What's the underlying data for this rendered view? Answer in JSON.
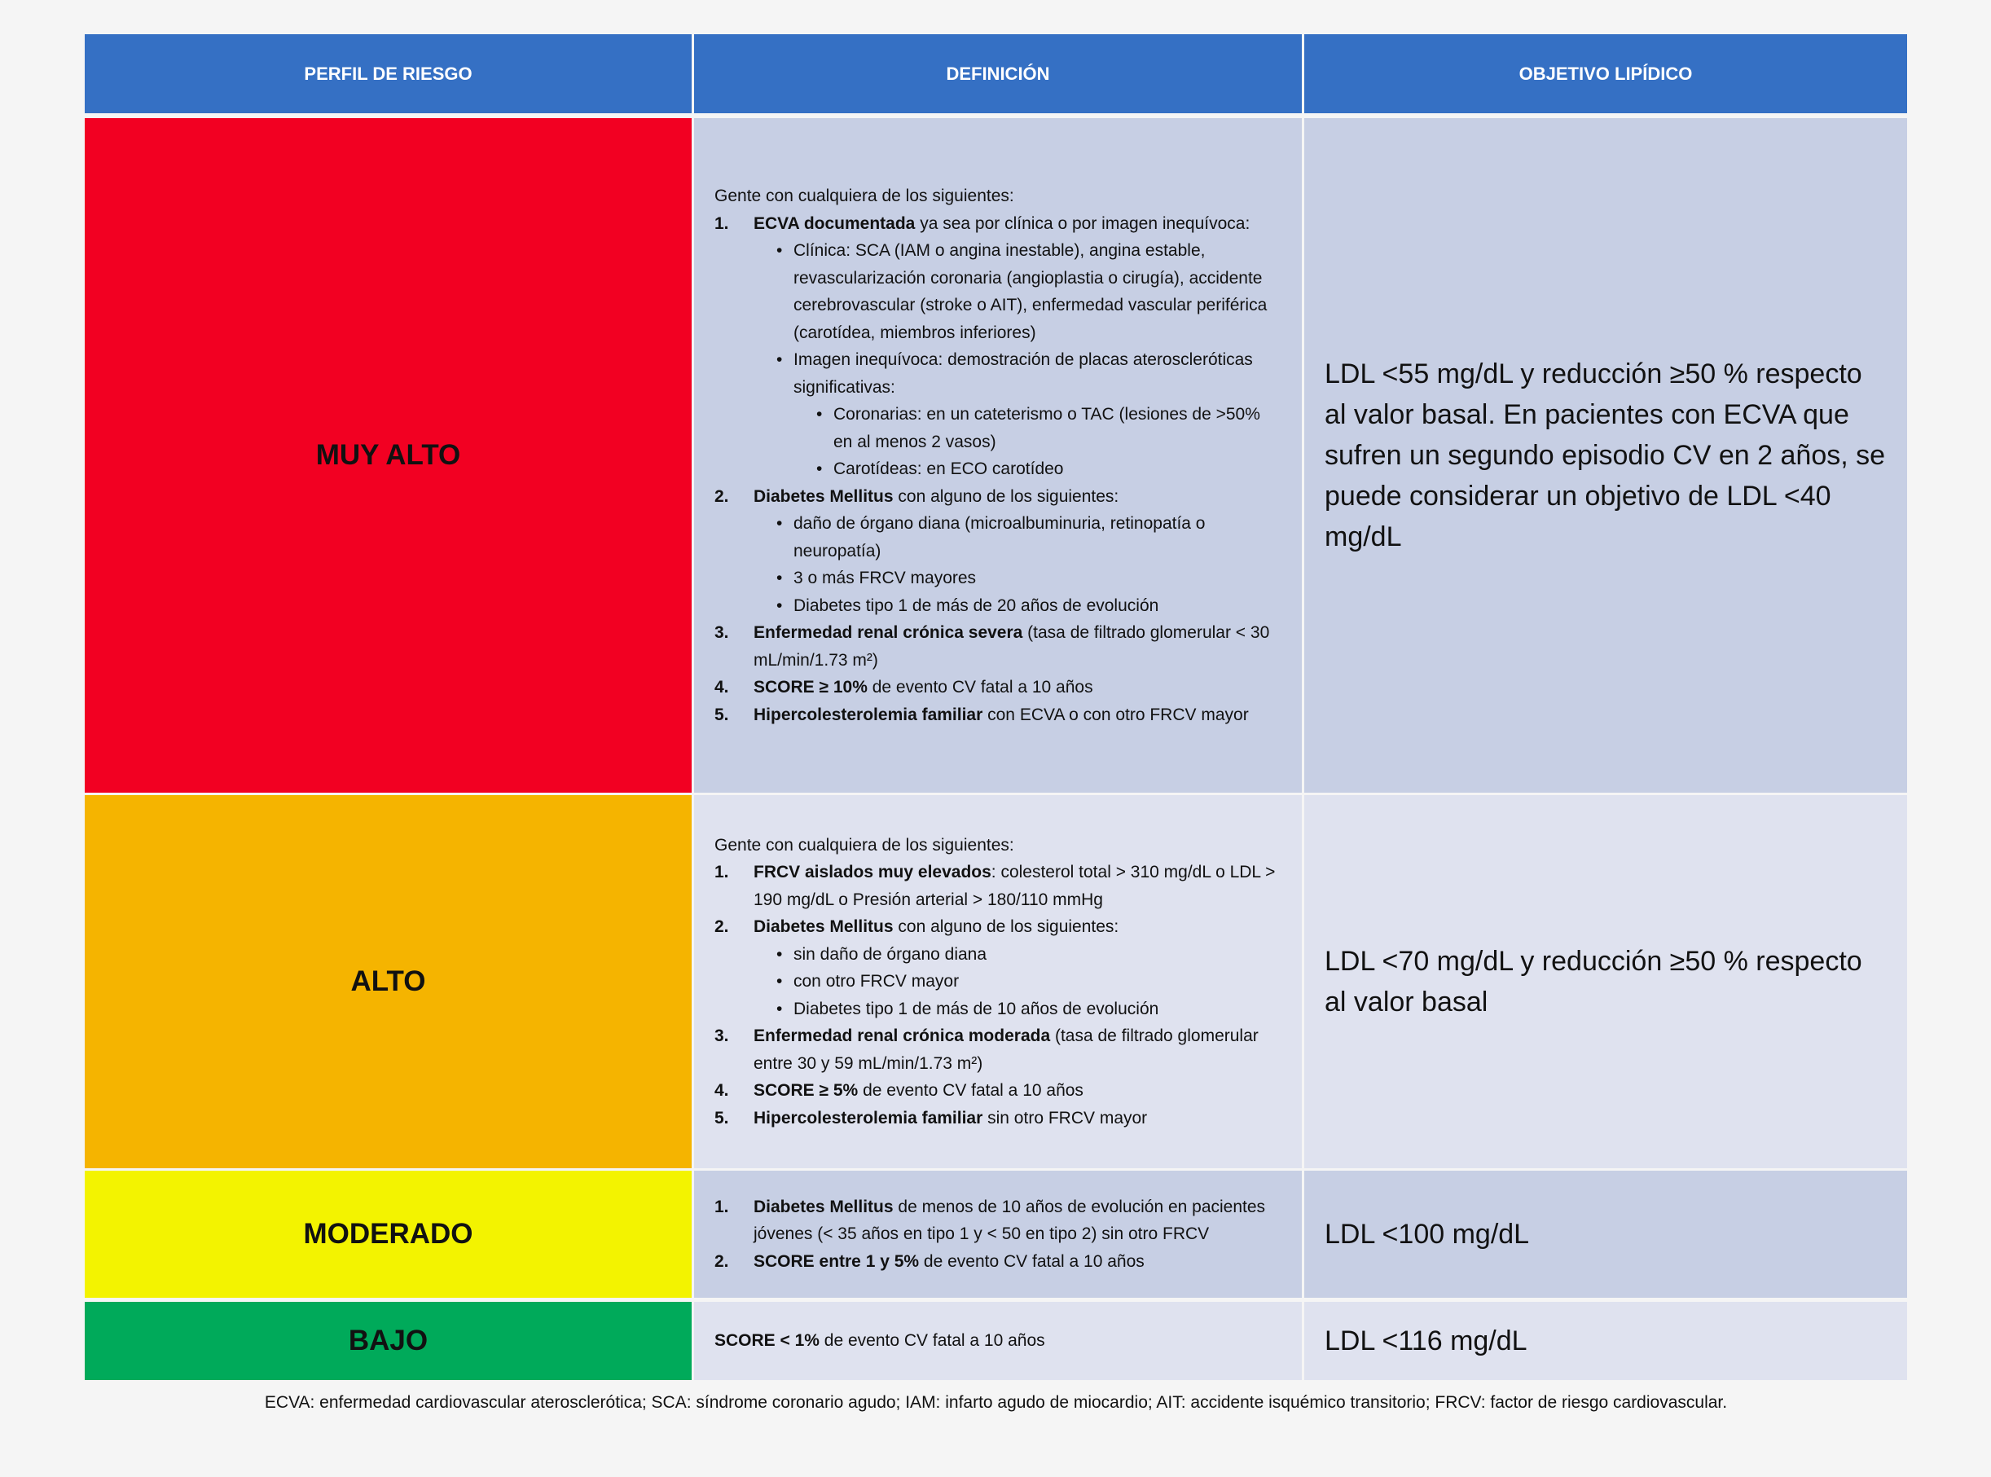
{
  "header": {
    "columns": [
      "PERFIL DE RIESGO",
      "DEFINICIÓN",
      "OBJETIVO LIPÍDICO"
    ]
  },
  "rows": [
    {
      "risk": "MUY ALTO",
      "color": "#f20022",
      "cell_color": "#c7cfe4",
      "definition": {
        "intro": "Gente con cualquiera de los siguientes:",
        "items": [
          {
            "number": "1.",
            "bold": "ECVA documentada",
            "text": " ya sea por clínica o por imagen inequívoca:",
            "subitems": [
              {
                "text": "Clínica: SCA (IAM o angina inestable), angina estable, revascularización coronaria (angioplastia o cirugía), accidente cerebrovascular (stroke o AIT), enfermedad vascular periférica (carotídea, miembros inferiores)"
              },
              {
                "text": "Imagen inequívoca: demostración de placas ateroscleróticas significativas:",
                "subitems": [
                  {
                    "text": "Coronarias: en un cateterismo o TAC (lesiones de >50% en al menos 2 vasos)"
                  },
                  {
                    "text": "Carotídeas: en ECO carotídeo"
                  }
                ]
              }
            ]
          },
          {
            "number": "2.",
            "bold": "Diabetes Mellitus",
            "text": " con alguno de los siguientes:",
            "subitems": [
              {
                "text": "daño de órgano diana (microalbuminuria, retinopatía o neuropatía)"
              },
              {
                "text": "3 o más FRCV mayores"
              },
              {
                "text": "Diabetes tipo 1 de más de 20 años de evolución"
              }
            ]
          },
          {
            "number": "3.",
            "bold": "Enfermedad renal crónica severa",
            "text": " (tasa de filtrado glomerular < 30 mL/min/1.73 m²)"
          },
          {
            "number": "4.",
            "bold": "SCORE ≥ 10%",
            "text": " de evento CV fatal a 10 años"
          },
          {
            "number": "5.",
            "bold": "Hipercolesterolemia familiar",
            "text": " con ECVA o con otro FRCV mayor"
          }
        ]
      },
      "objective": "LDL <55 mg/dL y reducción ≥50 % respecto al valor basal. En pacientes con ECVA que sufren un segundo episodio CV en 2 años, se puede considerar un objetivo de LDL <40 mg/dL"
    },
    {
      "risk": "ALTO",
      "color": "#f5b400",
      "cell_color": "#dfe2ef",
      "definition": {
        "intro": "Gente con cualquiera de los siguientes:",
        "items": [
          {
            "number": "1.",
            "bold": "FRCV aislados muy elevados",
            "text": ": colesterol total > 310 mg/dL o LDL > 190 mg/dL o Presión arterial > 180/110 mmHg"
          },
          {
            "number": "2.",
            "bold": "Diabetes Mellitus",
            "text": " con alguno de los siguientes:",
            "subitems": [
              {
                "text": "sin daño de órgano diana"
              },
              {
                "text": "con otro FRCV mayor"
              },
              {
                "text": "Diabetes tipo 1 de más de 10 años de evolución"
              }
            ]
          },
          {
            "number": "3.",
            "bold": "Enfermedad renal crónica moderada",
            "text": " (tasa de filtrado glomerular entre 30 y 59 mL/min/1.73 m²)"
          },
          {
            "number": "4.",
            "bold": "SCORE ≥ 5%",
            "text": " de evento CV fatal a 10 años"
          },
          {
            "number": "5.",
            "bold": "Hipercolesterolemia familiar",
            "text": " sin otro FRCV mayor"
          }
        ]
      },
      "objective": "LDL <70 mg/dL y reducción ≥50 % respecto al valor basal"
    },
    {
      "risk": "MODERADO",
      "color": "#f3f300",
      "cell_color": "#c7cfe4",
      "definition": {
        "items": [
          {
            "number": "1.",
            "bold": "Diabetes Mellitus",
            "text": " de menos de 10 años de evolución en pacientes jóvenes (< 35 años en tipo 1 y < 50 en tipo 2) sin otro FRCV"
          },
          {
            "number": "2.",
            "bold": "SCORE entre 1 y 5%",
            "text": " de evento CV fatal a 10 años"
          }
        ]
      },
      "objective": "LDL <100 mg/dL"
    },
    {
      "risk": "BAJO",
      "color": "#00aa5a",
      "cell_color": "#dfe2ef",
      "definition": {
        "items": [
          {
            "bold": "SCORE < 1%",
            "text": " de evento CV fatal a 10 años"
          }
        ]
      },
      "objective": "LDL <116 mg/dL"
    }
  ],
  "footnote": "ECVA: enfermedad cardiovascular aterosclerótica; SCA: síndrome coronario agudo; IAM: infarto agudo de miocardio; AIT: accidente isquémico transitorio; FRCV: factor de riesgo cardiovascular."
}
